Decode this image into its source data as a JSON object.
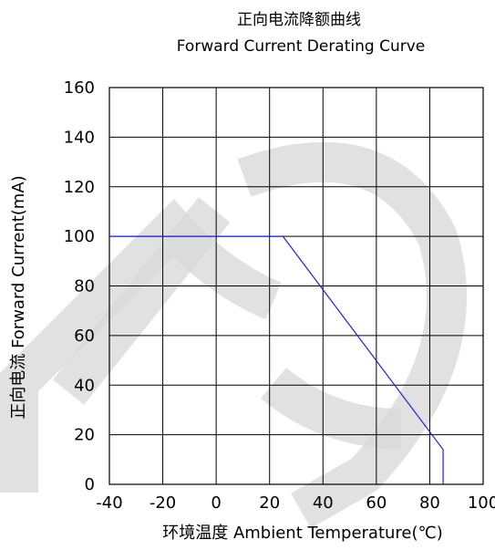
{
  "chart_data": {
    "type": "line",
    "title": "正向电流降额曲线",
    "subtitle": "Forward Current Derating Curve",
    "xlabel": "环境温度  Ambient Temperature(℃)",
    "ylabel": "正向电流 Forward Current(mA)",
    "xlim": [
      -40,
      100
    ],
    "ylim": [
      0,
      160
    ],
    "x_ticks": [
      -40,
      -20,
      0,
      20,
      40,
      60,
      80,
      100
    ],
    "y_ticks": [
      0,
      20,
      40,
      60,
      80,
      100,
      120,
      140,
      160
    ],
    "grid": true,
    "line_color": "#1f1fe6",
    "series": [
      {
        "x": [
          -40,
          25,
          85,
          85
        ],
        "y": [
          100,
          100,
          14,
          0
        ]
      }
    ]
  }
}
